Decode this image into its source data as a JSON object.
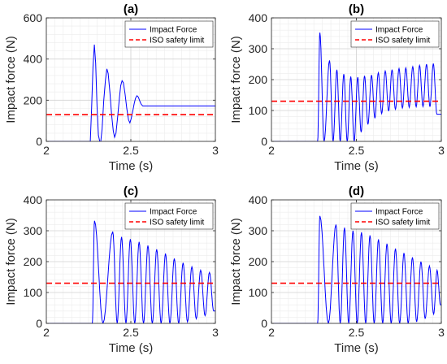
{
  "chart_data": [
    {
      "panel": "(a)",
      "type": "line",
      "title": "(a)",
      "xlabel": "Time (s)",
      "ylabel": "Impact force (N)",
      "xlim": [
        2,
        3
      ],
      "ylim": [
        0,
        600
      ],
      "xticks": [
        2,
        2.5,
        3
      ],
      "yticks": [
        0,
        200,
        400,
        600
      ],
      "x_tick_labels": [
        "2",
        "2.5",
        "3"
      ],
      "y_tick_labels": [
        "0",
        "200",
        "400",
        "600"
      ],
      "grid": true,
      "legend_position": "top-right",
      "legend": [
        "Impact Force",
        "ISO safety limit"
      ],
      "series": [
        {
          "name": "Impact Force",
          "color": "#0000ff",
          "style": "solid",
          "points": [
            [
              2.0,
              0
            ],
            [
              2.26,
              0
            ],
            [
              2.268,
              160
            ],
            [
              2.276,
              360
            ],
            [
              2.284,
              470
            ],
            [
              2.292,
              380
            ],
            [
              2.3,
              170
            ],
            [
              2.308,
              30
            ],
            [
              2.316,
              0
            ],
            [
              2.322,
              0
            ],
            [
              2.33,
              60
            ],
            [
              2.34,
              200
            ],
            [
              2.35,
              300
            ],
            [
              2.358,
              352
            ],
            [
              2.366,
              330
            ],
            [
              2.376,
              240
            ],
            [
              2.386,
              130
            ],
            [
              2.396,
              50
            ],
            [
              2.404,
              20
            ],
            [
              2.412,
              40
            ],
            [
              2.422,
              120
            ],
            [
              2.432,
              210
            ],
            [
              2.44,
              270
            ],
            [
              2.448,
              295
            ],
            [
              2.456,
              285
            ],
            [
              2.466,
              230
            ],
            [
              2.476,
              160
            ],
            [
              2.486,
              105
            ],
            [
              2.494,
              90
            ],
            [
              2.502,
              110
            ],
            [
              2.512,
              150
            ],
            [
              2.52,
              185
            ],
            [
              2.528,
              210
            ],
            [
              2.536,
              222
            ],
            [
              2.544,
              215
            ],
            [
              2.552,
              198
            ],
            [
              2.56,
              182
            ],
            [
              2.57,
              172
            ],
            [
              2.6,
              172
            ],
            [
              3.0,
              172
            ]
          ]
        },
        {
          "name": "ISO safety limit",
          "color": "#ff0000",
          "style": "dashed",
          "points": [
            [
              2,
              130
            ],
            [
              3,
              130
            ]
          ]
        }
      ]
    },
    {
      "panel": "(b)",
      "type": "line",
      "title": "(b)",
      "xlabel": "Time (s)",
      "ylabel": "Impact force (N)",
      "xlim": [
        2,
        3
      ],
      "ylim": [
        0,
        400
      ],
      "xticks": [
        2,
        2.5,
        3
      ],
      "yticks": [
        0,
        100,
        200,
        300,
        400
      ],
      "x_tick_labels": [
        "2",
        "2.5",
        "3"
      ],
      "y_tick_labels": [
        "0",
        "100",
        "200",
        "300",
        "400"
      ],
      "grid": true,
      "legend_position": "top-right",
      "legend": [
        "Impact Force",
        "ISO safety limit"
      ],
      "series": [
        {
          "name": "Impact Force",
          "color": "#0000ff",
          "style": "solid",
          "peaks": [
            [
              2.285,
              352
            ],
            [
              2.342,
              262
            ],
            [
              2.385,
              232
            ],
            [
              2.426,
              218
            ],
            [
              2.467,
              210
            ],
            [
              2.508,
              208
            ],
            [
              2.548,
              212
            ],
            [
              2.589,
              215
            ],
            [
              2.629,
              222
            ],
            [
              2.67,
              228
            ],
            [
              2.71,
              232
            ],
            [
              2.751,
              236
            ],
            [
              2.791,
              238
            ],
            [
              2.832,
              242
            ],
            [
              2.872,
              246
            ],
            [
              2.913,
              250
            ],
            [
              2.953,
              252
            ]
          ],
          "troughs": [
            [
              2.31,
              0
            ],
            [
              2.363,
              0
            ],
            [
              2.405,
              0
            ],
            [
              2.446,
              0
            ],
            [
              2.487,
              0
            ],
            [
              2.528,
              30
            ],
            [
              2.568,
              55
            ],
            [
              2.609,
              75
            ],
            [
              2.649,
              90
            ],
            [
              2.69,
              98
            ],
            [
              2.73,
              104
            ],
            [
              2.771,
              108
            ],
            [
              2.811,
              110
            ],
            [
              2.852,
              112
            ],
            [
              2.892,
              113
            ],
            [
              2.933,
              112
            ],
            [
              2.974,
              88
            ]
          ],
          "onset": 2.272,
          "end_value": 88
        },
        {
          "name": "ISO safety limit",
          "color": "#ff0000",
          "style": "dashed",
          "points": [
            [
              2,
              130
            ],
            [
              3,
              130
            ]
          ]
        }
      ]
    },
    {
      "panel": "(c)",
      "type": "line",
      "title": "(c)",
      "xlabel": "Time (s)",
      "ylabel": "Impact force (N)",
      "xlim": [
        2,
        3
      ],
      "ylim": [
        0,
        400
      ],
      "xticks": [
        2,
        2.5,
        3
      ],
      "yticks": [
        0,
        100,
        200,
        300,
        400
      ],
      "x_tick_labels": [
        "2",
        "2.5",
        "3"
      ],
      "y_tick_labels": [
        "0",
        "100",
        "200",
        "300",
        "400"
      ],
      "grid": true,
      "legend_position": "top-right",
      "legend": [
        "Impact Force",
        "ISO safety limit"
      ],
      "series": [
        {
          "name": "Impact Force",
          "color": "#0000ff",
          "style": "solid",
          "peaks": [
            [
              2.285,
              332
            ],
            [
              2.393,
              297
            ],
            [
              2.445,
              280
            ],
            [
              2.497,
              273
            ],
            [
              2.549,
              264
            ],
            [
              2.601,
              252
            ],
            [
              2.653,
              240
            ],
            [
              2.705,
              226
            ],
            [
              2.757,
              210
            ],
            [
              2.809,
              196
            ],
            [
              2.861,
              183
            ],
            [
              2.913,
              172
            ],
            [
              2.965,
              165
            ]
          ],
          "troughs": [
            [
              2.335,
              0
            ],
            [
              2.419,
              0
            ],
            [
              2.471,
              0
            ],
            [
              2.523,
              0
            ],
            [
              2.575,
              0
            ],
            [
              2.627,
              0
            ],
            [
              2.679,
              0
            ],
            [
              2.731,
              0
            ],
            [
              2.783,
              0
            ],
            [
              2.835,
              5
            ],
            [
              2.887,
              15
            ],
            [
              2.939,
              25
            ],
            [
              2.99,
              40
            ]
          ],
          "onset": 2.272,
          "end_value": 40
        },
        {
          "name": "ISO safety limit",
          "color": "#ff0000",
          "style": "dashed",
          "points": [
            [
              2,
              130
            ],
            [
              3,
              130
            ]
          ]
        }
      ]
    },
    {
      "panel": "(d)",
      "type": "line",
      "title": "(d)",
      "xlabel": "Time (s)",
      "ylabel": "Impact force (N)",
      "xlim": [
        2,
        3
      ],
      "ylim": [
        0,
        400
      ],
      "xticks": [
        2,
        2.5,
        3
      ],
      "yticks": [
        0,
        100,
        200,
        300,
        400
      ],
      "x_tick_labels": [
        "2",
        "2.5",
        "3"
      ],
      "y_tick_labels": [
        "0",
        "100",
        "200",
        "300",
        "400"
      ],
      "grid": true,
      "legend_position": "top-right",
      "legend": [
        "Impact Force",
        "ISO safety limit"
      ],
      "series": [
        {
          "name": "Impact Force",
          "color": "#0000ff",
          "style": "solid",
          "peaks": [
            [
              2.285,
              348
            ],
            [
              2.38,
              320
            ],
            [
              2.43,
              310
            ],
            [
              2.48,
              300
            ],
            [
              2.53,
              295
            ],
            [
              2.58,
              285
            ],
            [
              2.63,
              272
            ],
            [
              2.68,
              258
            ],
            [
              2.73,
              242
            ],
            [
              2.78,
              228
            ],
            [
              2.83,
              214
            ],
            [
              2.88,
              200
            ],
            [
              2.93,
              186
            ],
            [
              2.975,
              172
            ]
          ],
          "troughs": [
            [
              2.335,
              0
            ],
            [
              2.405,
              0
            ],
            [
              2.455,
              0
            ],
            [
              2.505,
              0
            ],
            [
              2.555,
              0
            ],
            [
              2.605,
              0
            ],
            [
              2.655,
              0
            ],
            [
              2.705,
              0
            ],
            [
              2.755,
              0
            ],
            [
              2.805,
              0
            ],
            [
              2.855,
              5
            ],
            [
              2.905,
              15
            ],
            [
              2.955,
              30
            ],
            [
              2.995,
              60
            ]
          ],
          "onset": 2.272,
          "end_value": 60
        },
        {
          "name": "ISO safety limit",
          "color": "#ff0000",
          "style": "dashed",
          "points": [
            [
              2,
              130
            ],
            [
              3,
              130
            ]
          ]
        }
      ]
    }
  ]
}
